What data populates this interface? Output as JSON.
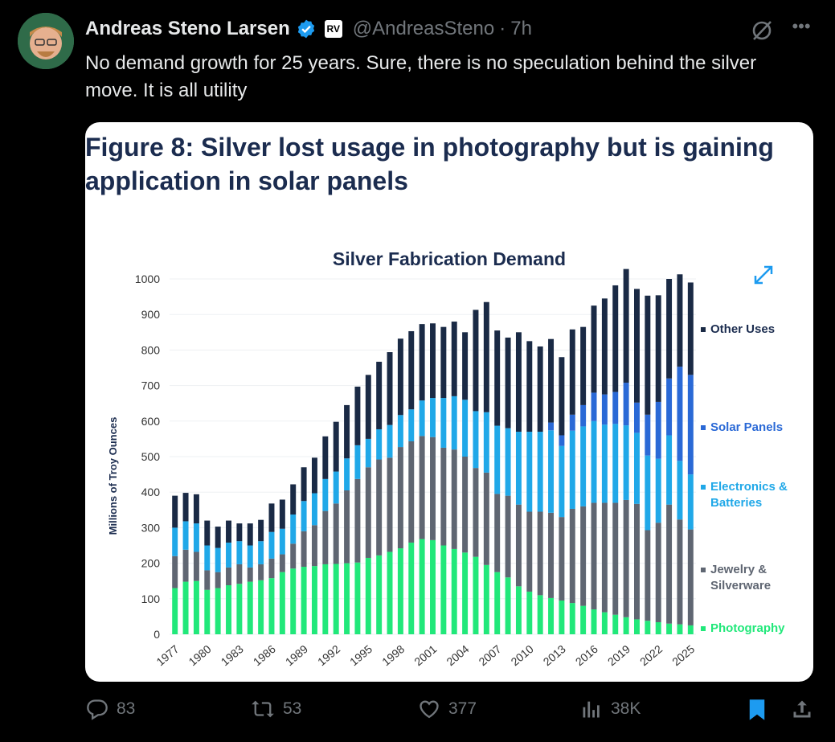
{
  "tweet": {
    "author_name": "Andreas Steno Larsen",
    "affiliate_badge": "RV",
    "handle": "@AndreasSteno",
    "time": "7h",
    "text": "No demand growth for 25 years. Sure, there is no speculation behind the silver move. It is all utility"
  },
  "figure": {
    "title_line1": "Figure 8: Silver lost usage in photography but is gaining",
    "title_line2": "application in solar panels"
  },
  "actions": {
    "replies": "83",
    "reposts": "53",
    "likes": "377",
    "views": "38K"
  },
  "colors": {
    "accent": "#1d9bf0",
    "photography": "#21e87a",
    "jewelry": "#5f6672",
    "electronics": "#20a8e8",
    "solar": "#2a69d6",
    "other": "#1a2a45"
  },
  "chart_data": {
    "type": "bar",
    "stacked": true,
    "title": "Silver Fabrication Demand",
    "xlabel": "",
    "ylabel": "Millions of Troy Ounces",
    "ylim": [
      0,
      1000
    ],
    "yticks": [
      0,
      100,
      200,
      300,
      400,
      500,
      600,
      700,
      800,
      900,
      1000
    ],
    "xtick_labels": [
      "1977",
      "1980",
      "1983",
      "1986",
      "1989",
      "1992",
      "1995",
      "1998",
      "2001",
      "2004",
      "2007",
      "2010",
      "2013",
      "2016",
      "2019",
      "2022",
      "2025"
    ],
    "legend_position": "right",
    "categories": [
      1977,
      1978,
      1979,
      1980,
      1981,
      1982,
      1983,
      1984,
      1985,
      1986,
      1987,
      1988,
      1989,
      1990,
      1991,
      1992,
      1993,
      1994,
      1995,
      1996,
      1997,
      1998,
      1999,
      2000,
      2001,
      2002,
      2003,
      2004,
      2005,
      2006,
      2007,
      2008,
      2009,
      2010,
      2011,
      2012,
      2013,
      2014,
      2015,
      2016,
      2017,
      2018,
      2019,
      2020,
      2021,
      2022,
      2023,
      2024,
      2025
    ],
    "series": [
      {
        "name": "Photography",
        "values": [
          130,
          148,
          150,
          125,
          130,
          138,
          142,
          148,
          152,
          158,
          175,
          185,
          190,
          192,
          197,
          198,
          200,
          202,
          215,
          222,
          232,
          242,
          258,
          268,
          265,
          250,
          240,
          230,
          218,
          195,
          175,
          160,
          135,
          120,
          110,
          102,
          95,
          88,
          80,
          70,
          62,
          55,
          48,
          42,
          38,
          34,
          30,
          28,
          25
        ]
      },
      {
        "name": "Jewelry & Silverware",
        "values": [
          90,
          90,
          82,
          55,
          45,
          50,
          55,
          40,
          45,
          55,
          50,
          70,
          100,
          115,
          150,
          170,
          205,
          235,
          255,
          270,
          265,
          285,
          285,
          290,
          290,
          275,
          280,
          270,
          250,
          260,
          220,
          230,
          230,
          225,
          235,
          240,
          235,
          265,
          280,
          300,
          308,
          315,
          330,
          325,
          255,
          280,
          335,
          295,
          270
        ]
      },
      {
        "name": "Electronics & Batteries",
        "values": [
          80,
          80,
          80,
          70,
          68,
          70,
          65,
          62,
          65,
          75,
          72,
          82,
          85,
          90,
          90,
          90,
          90,
          95,
          80,
          85,
          92,
          90,
          90,
          100,
          110,
          140,
          150,
          160,
          160,
          170,
          192,
          190,
          205,
          225,
          225,
          232,
          200,
          220,
          225,
          230,
          220,
          222,
          210,
          200,
          210,
          180,
          195,
          165,
          155
        ]
      },
      {
        "name": "Solar Panels",
        "values": [
          0,
          0,
          0,
          0,
          0,
          0,
          0,
          0,
          0,
          0,
          0,
          0,
          0,
          0,
          0,
          0,
          0,
          0,
          0,
          0,
          0,
          0,
          0,
          0,
          0,
          0,
          0,
          0,
          0,
          0,
          0,
          0,
          0,
          0,
          0,
          22,
          30,
          45,
          60,
          80,
          85,
          90,
          120,
          85,
          115,
          160,
          160,
          265,
          280
        ]
      },
      {
        "name": "Other Uses",
        "values": [
          90,
          80,
          82,
          70,
          60,
          62,
          50,
          62,
          60,
          80,
          82,
          85,
          95,
          100,
          120,
          140,
          150,
          165,
          180,
          190,
          205,
          215,
          220,
          215,
          210,
          200,
          210,
          190,
          285,
          310,
          268,
          255,
          280,
          255,
          240,
          235,
          220,
          240,
          220,
          245,
          270,
          300,
          320,
          320,
          335,
          300,
          280,
          260,
          260
        ]
      }
    ],
    "legend_labels": [
      "Other Uses",
      "Solar Panels",
      "Electronics &",
      "Batteries",
      "Jewelry &",
      "Silverware",
      "Photography"
    ]
  }
}
